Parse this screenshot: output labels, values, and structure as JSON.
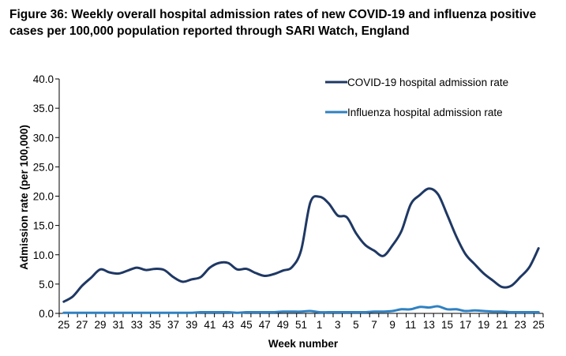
{
  "chart_data": {
    "type": "line",
    "title": "Figure 36: Weekly overall hospital admission rates of new COVID-19 and influenza positive cases per 100,000 population reported through SARI Watch, England",
    "xlabel": "Week number",
    "ylabel": "Admission rate (per 100,000)",
    "ylim": [
      0,
      40
    ],
    "yticks": [
      "0.0",
      "5.0",
      "10.0",
      "15.0",
      "20.0",
      "25.0",
      "30.0",
      "35.0",
      "40.0"
    ],
    "x": [
      "25",
      "26",
      "27",
      "28",
      "29",
      "30",
      "31",
      "32",
      "33",
      "34",
      "35",
      "36",
      "37",
      "38",
      "39",
      "40",
      "41",
      "42",
      "43",
      "44",
      "45",
      "46",
      "47",
      "48",
      "49",
      "50",
      "51",
      "52",
      "1",
      "2",
      "3",
      "4",
      "5",
      "6",
      "7",
      "8",
      "9",
      "10",
      "11",
      "12",
      "13",
      "14",
      "15",
      "16",
      "17",
      "18",
      "19",
      "20",
      "21",
      "22",
      "23",
      "24",
      "25"
    ],
    "xtick_labels": [
      "25",
      "27",
      "29",
      "31",
      "33",
      "35",
      "37",
      "39",
      "41",
      "43",
      "45",
      "47",
      "49",
      "51",
      "1",
      "3",
      "5",
      "7",
      "9",
      "11",
      "13",
      "15",
      "17",
      "19",
      "21",
      "23",
      "25"
    ],
    "grid": false,
    "legend_position": "top-right",
    "series": [
      {
        "name": "COVID-19 hospital admission rate",
        "color": "#1f3864",
        "values": [
          2.0,
          2.9,
          4.7,
          6.1,
          7.5,
          7.0,
          6.8,
          7.3,
          7.8,
          7.4,
          7.6,
          7.4,
          6.2,
          5.4,
          5.8,
          6.2,
          7.8,
          8.6,
          8.6,
          7.5,
          7.6,
          6.9,
          6.4,
          6.7,
          7.3,
          7.9,
          10.8,
          18.9,
          19.9,
          18.8,
          16.7,
          16.4,
          13.7,
          11.7,
          10.7,
          9.8,
          11.6,
          14.1,
          18.6,
          20.2,
          21.3,
          20.3,
          16.8,
          13.1,
          10.1,
          8.4,
          6.8,
          5.6,
          4.5,
          4.7,
          6.2,
          7.9,
          11.1
        ]
      },
      {
        "name": "Influenza hospital admission rate",
        "color": "#2f81c2",
        "values": [
          0.1,
          0.1,
          0.1,
          0.1,
          0.1,
          0.1,
          0.1,
          0.1,
          0.1,
          0.1,
          0.1,
          0.1,
          0.1,
          0.1,
          0.1,
          0.2,
          0.2,
          0.2,
          0.2,
          0.1,
          0.2,
          0.2,
          0.2,
          0.2,
          0.3,
          0.3,
          0.3,
          0.4,
          0.2,
          0.2,
          0.2,
          0.2,
          0.2,
          0.2,
          0.3,
          0.3,
          0.4,
          0.7,
          0.7,
          1.1,
          1.0,
          1.2,
          0.7,
          0.7,
          0.4,
          0.5,
          0.4,
          0.3,
          0.3,
          0.2,
          0.2,
          0.2,
          0.2
        ]
      }
    ]
  }
}
